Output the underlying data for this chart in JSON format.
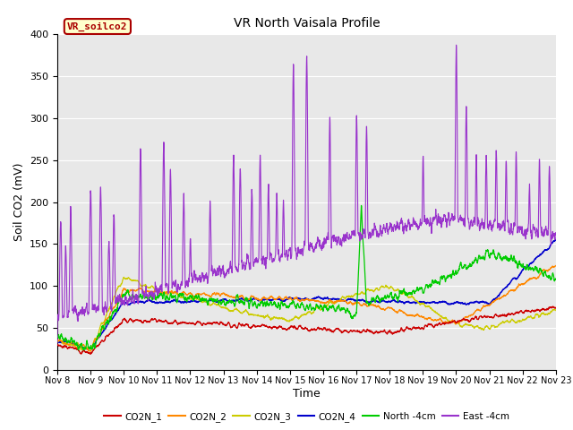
{
  "title": "VR North Vaisala Profile",
  "ylabel": "Soil CO2 (mV)",
  "xlabel": "Time",
  "ylim": [
    0,
    400
  ],
  "yticks": [
    0,
    50,
    100,
    150,
    200,
    250,
    300,
    350,
    400
  ],
  "xtick_labels": [
    "Nov 8",
    "Nov 9",
    "Nov 10",
    "Nov 11",
    "Nov 12",
    "Nov 13",
    "Nov 14",
    "Nov 15",
    "Nov 16",
    "Nov 17",
    "Nov 18",
    "Nov 19",
    "Nov 20",
    "Nov 21",
    "Nov 22",
    "Nov 23"
  ],
  "annotation_text": "VR_soilco2",
  "annotation_color": "#aa0000",
  "annotation_bg": "#ffffcc",
  "annotation_border": "#aa0000",
  "colors": {
    "CO2N_1": "#cc0000",
    "CO2N_2": "#ff8800",
    "CO2N_3": "#cccc00",
    "CO2N_4": "#0000cc",
    "North_4cm": "#00cc00",
    "East_4cm": "#9933cc"
  },
  "legend_labels": [
    "CO2N_1",
    "CO2N_2",
    "CO2N_3",
    "CO2N_4",
    "North -4cm",
    "East -4cm"
  ],
  "bg_color": "#e8e8e8",
  "grid_color": "#ffffff"
}
